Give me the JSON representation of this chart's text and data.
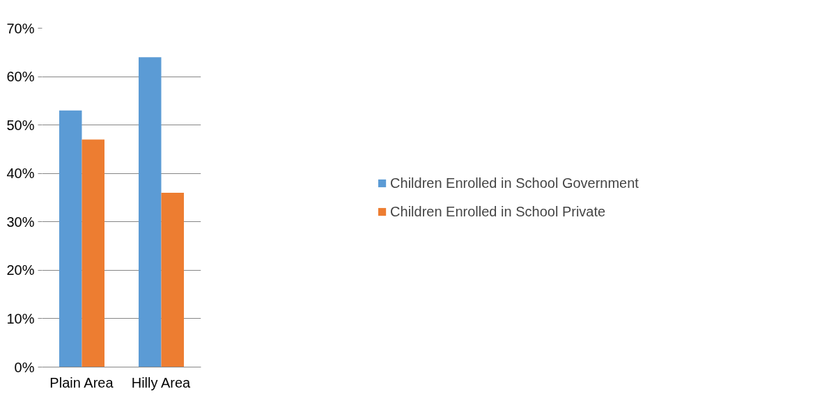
{
  "chart_data": {
    "type": "bar",
    "categories": [
      "Plain Area",
      "Hilly Area"
    ],
    "series": [
      {
        "name": "Children Enrolled in School Government",
        "color": "#5b9bd5",
        "values": [
          53,
          64
        ]
      },
      {
        "name": "Children Enrolled in School Private",
        "color": "#ed7d31",
        "values": [
          47,
          36
        ]
      }
    ],
    "ylim": [
      0,
      70
    ],
    "yticks": [
      {
        "value": 0,
        "label": "0%"
      },
      {
        "value": 10,
        "label": "10%"
      },
      {
        "value": 20,
        "label": "20%"
      },
      {
        "value": 30,
        "label": "30%"
      },
      {
        "value": 40,
        "label": "40%"
      },
      {
        "value": 50,
        "label": "50%"
      },
      {
        "value": 60,
        "label": "60%"
      },
      {
        "value": 70,
        "label": "70%"
      }
    ],
    "grid": "y",
    "legend": "right"
  }
}
